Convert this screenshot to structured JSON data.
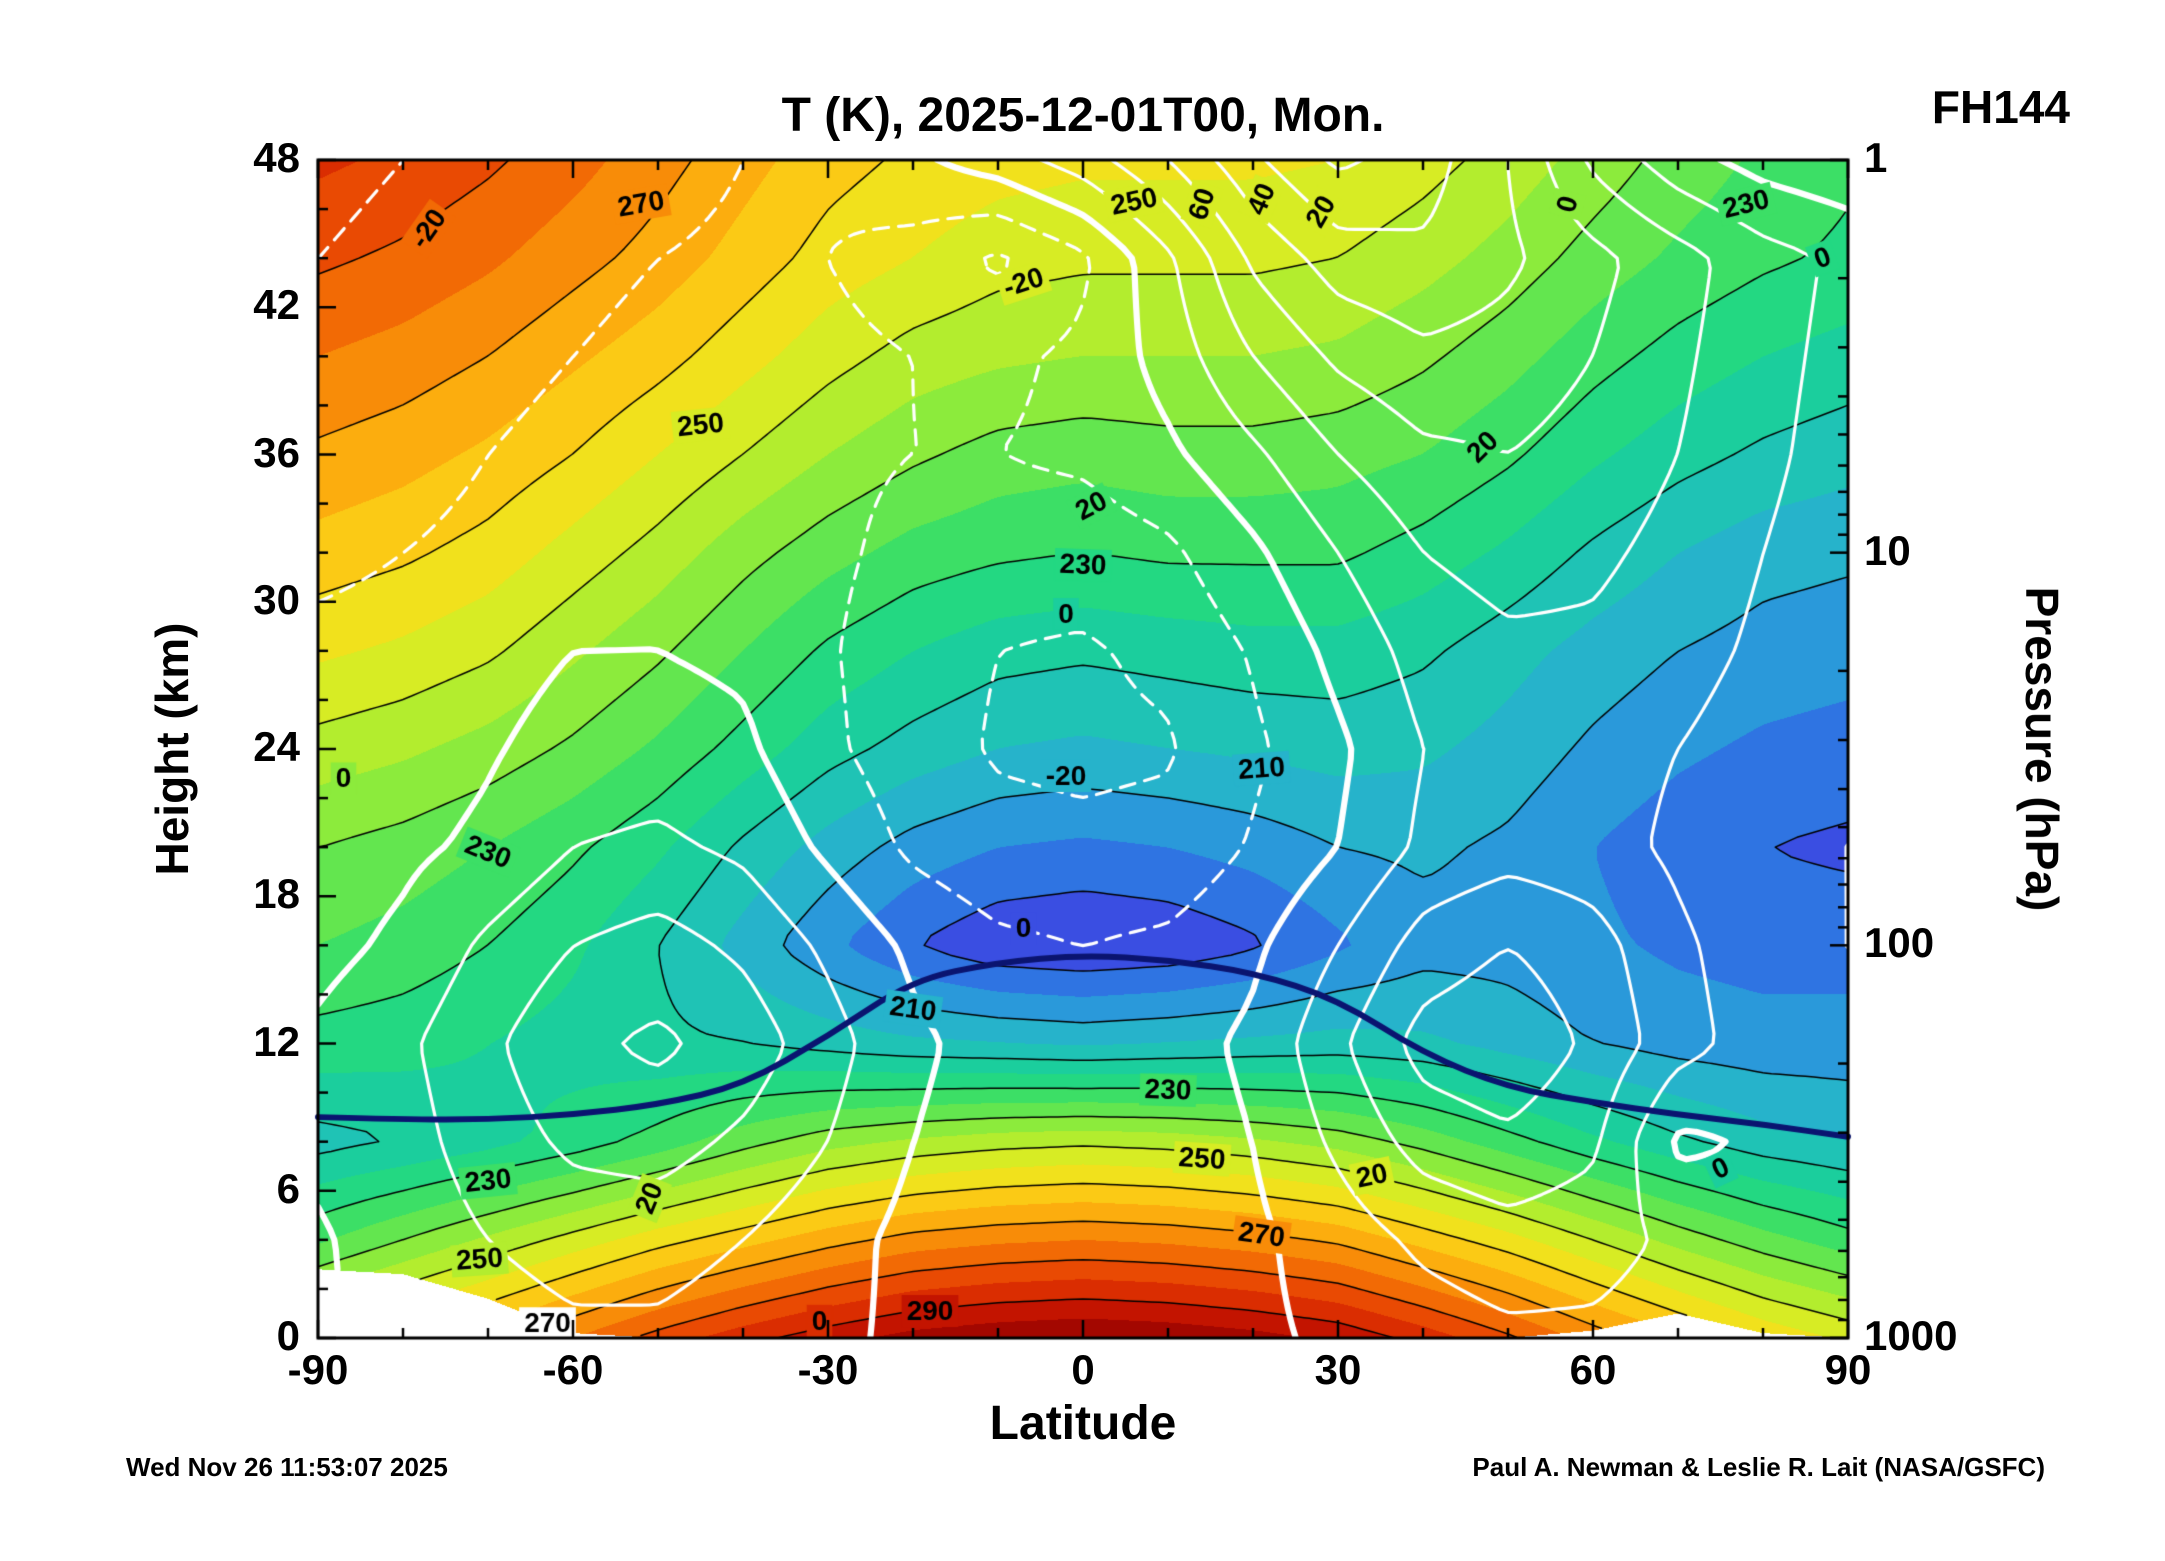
{
  "title": "T (K), 2025-12-01T00, Mon.",
  "annotation_top_right": "FH144",
  "footer_left": "Wed Nov 26 11:53:07 2025",
  "footer_right": "Paul A. Newman & Leslie R. Lait (NASA/GSFC)",
  "axes": {
    "x_label": "Latitude",
    "y_left_label": "Height (km)",
    "y_right_label": "Pressure (hPa)",
    "x_ticks": [
      -90,
      -60,
      -30,
      0,
      30,
      60,
      90
    ],
    "x_minor_step": 10,
    "y_left_ticks": [
      0,
      6,
      12,
      18,
      24,
      30,
      36,
      42,
      48
    ],
    "y_left_minor_step": 2,
    "y_right_ticks": [
      1,
      10,
      100,
      1000
    ],
    "x_range": [
      -90,
      90
    ],
    "y_range_km": [
      0,
      48
    ]
  },
  "chart_data": {
    "type": "heatmap",
    "x_lat": [
      -90,
      -80,
      -70,
      -60,
      -50,
      -40,
      -30,
      -20,
      -10,
      0,
      10,
      20,
      30,
      40,
      50,
      60,
      70,
      80,
      90
    ],
    "y_km": [
      0,
      4,
      8,
      12,
      16,
      20,
      24,
      28,
      32,
      36,
      40,
      44,
      48
    ],
    "temperature_K": [
      [
        256,
        262,
        268,
        275,
        282,
        288,
        293,
        297,
        299,
        300,
        299,
        297,
        294,
        288,
        281,
        273,
        266,
        259,
        254
      ],
      [
        234,
        240,
        246,
        252,
        258,
        263,
        268,
        272,
        274,
        275,
        274,
        272,
        269,
        263,
        257,
        250,
        243,
        237,
        232
      ],
      [
        218,
        220,
        223,
        227,
        232,
        238,
        243,
        246,
        248,
        249,
        248,
        246,
        243,
        238,
        232,
        226,
        221,
        217,
        215
      ],
      [
        228,
        227,
        225,
        223,
        221,
        220,
        218,
        216,
        215,
        214,
        215,
        216,
        217,
        216,
        213,
        210,
        208,
        207,
        207
      ],
      [
        235,
        233,
        230,
        226,
        220,
        213,
        206,
        200,
        196,
        195,
        196,
        199,
        204,
        208,
        208,
        206,
        204,
        203,
        203
      ],
      [
        240,
        238,
        235,
        231,
        226,
        219,
        213,
        208,
        205,
        204,
        205,
        207,
        210,
        211,
        209,
        205,
        202,
        200,
        199
      ],
      [
        248,
        246,
        243,
        239,
        234,
        228,
        222,
        218,
        215,
        214,
        215,
        216,
        217,
        216,
        213,
        209,
        206,
        204,
        203
      ],
      [
        256,
        254,
        251,
        246,
        241,
        235,
        229,
        225,
        222,
        221,
        222,
        223,
        223,
        221,
        217,
        213,
        210,
        208,
        207
      ],
      [
        263,
        261,
        258,
        253,
        248,
        242,
        237,
        233,
        231,
        230,
        231,
        231,
        231,
        228,
        224,
        219,
        215,
        212,
        211
      ],
      [
        269,
        267,
        264,
        260,
        255,
        250,
        245,
        241,
        238,
        237,
        238,
        238,
        237,
        235,
        231,
        226,
        222,
        219,
        217
      ],
      [
        275,
        273,
        270,
        266,
        262,
        257,
        252,
        248,
        246,
        245,
        245,
        245,
        244,
        241,
        237,
        232,
        228,
        225,
        223
      ],
      [
        281,
        279,
        276,
        272,
        268,
        263,
        258,
        255,
        252,
        251,
        251,
        251,
        250,
        247,
        243,
        238,
        234,
        231,
        229
      ],
      [
        286,
        284,
        281,
        277,
        272,
        267,
        262,
        259,
        257,
        256,
        256,
        256,
        255,
        252,
        248,
        243,
        238,
        234,
        231
      ]
    ],
    "zonal_wind_ms": [
      [
        -1,
        2,
        5,
        8,
        8,
        5,
        2,
        -2,
        -4,
        -5,
        -4,
        -2,
        2,
        5,
        8,
        8,
        5,
        2,
        0
      ],
      [
        -1,
        4,
        10,
        14,
        14,
        10,
        4,
        -3,
        -6,
        -6,
        -5,
        -2,
        5,
        12,
        16,
        14,
        8,
        4,
        2
      ],
      [
        2,
        6,
        15,
        22,
        24,
        18,
        10,
        0,
        -5,
        -6,
        -5,
        0,
        12,
        24,
        28,
        22,
        -2,
        1,
        2
      ],
      [
        2,
        8,
        18,
        28,
        32,
        26,
        14,
        2,
        -4,
        -6,
        -4,
        2,
        18,
        34,
        38,
        28,
        14,
        5,
        2
      ],
      [
        -3,
        2,
        12,
        20,
        24,
        18,
        8,
        -2,
        -8,
        -10,
        -8,
        -2,
        10,
        24,
        30,
        24,
        12,
        4,
        0
      ],
      [
        -5,
        -2,
        2,
        10,
        12,
        8,
        -2,
        -12,
        -17,
        -18,
        -17,
        -9,
        0,
        12,
        16,
        14,
        8,
        2,
        0
      ],
      [
        -6,
        -5,
        -1,
        4,
        5,
        2,
        -8,
        -16,
        -21,
        -22,
        -21,
        -12,
        -2,
        10,
        14,
        14,
        10,
        5,
        2
      ],
      [
        -8,
        -7,
        -4,
        0,
        0,
        -2,
        -9,
        -16,
        -20,
        -21,
        -18,
        -9,
        3,
        14,
        18,
        18,
        14,
        8,
        4
      ],
      [
        -12,
        -10,
        -8,
        -4,
        -2,
        -4,
        -8,
        -13,
        -16,
        -16,
        -12,
        -2,
        10,
        20,
        24,
        22,
        17,
        10,
        5
      ],
      [
        -15,
        -13,
        -10,
        -7,
        -5,
        -5,
        -8,
        -10,
        -10,
        -8,
        -2,
        8,
        20,
        28,
        30,
        26,
        20,
        12,
        6
      ],
      [
        -18,
        -16,
        -13,
        -10,
        -8,
        -7,
        -8,
        -10,
        -12,
        -8,
        4,
        20,
        32,
        38,
        36,
        30,
        22,
        13,
        7
      ],
      [
        -20,
        -18,
        -15,
        -12,
        -10,
        -9,
        -10,
        -14,
        -22,
        -12,
        8,
        32,
        45,
        48,
        42,
        33,
        24,
        14,
        8
      ],
      [
        -22,
        -20,
        -17,
        -14,
        -12,
        -10,
        -8,
        -2,
        5,
        15,
        30,
        48,
        62,
        55,
        40,
        18,
        4,
        -4,
        -8
      ]
    ],
    "tropopause_km": [
      9.0,
      8.9,
      8.9,
      9.1,
      9.5,
      10.3,
      12.3,
      14.6,
      15.3,
      15.6,
      15.4,
      14.9,
      13.8,
      11.6,
      10.2,
      9.6,
      9.1,
      8.7,
      8.2
    ],
    "terrain_km": [
      2.8,
      2.6,
      1.6,
      0.2,
      0,
      0,
      0,
      0,
      0,
      0,
      0,
      0,
      0,
      0,
      0,
      0.3,
      1.0,
      0.2,
      0
    ],
    "fill_levels_K": {
      "start": 190,
      "step": 5
    },
    "colormap": [
      "#3c2ed4",
      "#3a4ee2",
      "#2f74e2",
      "#2a99da",
      "#26b3cb",
      "#1fc3b5",
      "#1bce9d",
      "#23d882",
      "#3cdf66",
      "#63e64f",
      "#8ceb3c",
      "#b3ed2e",
      "#d7ec24",
      "#f1e11c",
      "#fbca15",
      "#fcad0e",
      "#f88c08",
      "#f26a05",
      "#e94a03",
      "#da2d01",
      "#c31400",
      "#a30700",
      "#810000"
    ],
    "temp_contour_levels": [
      200,
      210,
      220,
      230,
      240,
      250,
      260,
      270,
      280,
      290
    ],
    "wind_contour_levels": [
      -30,
      -20,
      -10,
      10,
      20,
      30,
      40,
      50,
      60
    ],
    "wind_zero_level": 0,
    "contour_line_colors": {
      "temperature": "#000000",
      "wind": "#ffffff",
      "tropopause": "#0a1470"
    },
    "labels": [
      {
        "text": "270",
        "lat": -52,
        "km": 46.2,
        "rot": -10,
        "field": "temp"
      },
      {
        "text": "250",
        "lat": 6,
        "km": 46.3,
        "rot": -12,
        "field": "temp"
      },
      {
        "text": "230",
        "lat": 78,
        "km": 46.2,
        "rot": -14,
        "field": "temp"
      },
      {
        "text": "250",
        "lat": -45,
        "km": 37.2,
        "rot": -6,
        "field": "temp"
      },
      {
        "text": "230",
        "lat": -70,
        "km": 19.8,
        "rot": 22,
        "field": "temp"
      },
      {
        "text": "230",
        "lat": 0,
        "km": 31.5,
        "rot": 2,
        "field": "temp"
      },
      {
        "text": "210",
        "lat": 21,
        "km": 23.2,
        "rot": -4,
        "field": "temp"
      },
      {
        "text": "210",
        "lat": -20,
        "km": 13.4,
        "rot": 8,
        "field": "temp"
      },
      {
        "text": "230",
        "lat": 10,
        "km": 10.1,
        "rot": 2,
        "field": "temp"
      },
      {
        "text": "250",
        "lat": 14,
        "km": 7.3,
        "rot": 4,
        "field": "temp"
      },
      {
        "text": "270",
        "lat": 21,
        "km": 4.2,
        "rot": 8,
        "field": "temp"
      },
      {
        "text": "290",
        "lat": -18,
        "km": 1.1,
        "rot": 0,
        "field": "temp"
      },
      {
        "text": "230",
        "lat": -70,
        "km": 6.4,
        "rot": -6,
        "field": "temp"
      },
      {
        "text": "250",
        "lat": -71,
        "km": 3.2,
        "rot": -4,
        "field": "temp"
      },
      {
        "text": "270",
        "lat": -63,
        "km": 0.6,
        "rot": 0,
        "field": "temp"
      },
      {
        "text": "-20",
        "lat": -77,
        "km": 45.2,
        "rot": -55,
        "field": "wind"
      },
      {
        "text": "-20",
        "lat": -7,
        "km": 43.0,
        "rot": -18,
        "field": "wind"
      },
      {
        "text": "60",
        "lat": 14,
        "km": 46.2,
        "rot": -72,
        "field": "wind"
      },
      {
        "text": "40",
        "lat": 21,
        "km": 46.4,
        "rot": -66,
        "field": "wind"
      },
      {
        "text": "20",
        "lat": 28,
        "km": 45.9,
        "rot": -60,
        "field": "wind"
      },
      {
        "text": "0",
        "lat": 57,
        "km": 46.2,
        "rot": -75,
        "field": "wind"
      },
      {
        "text": "0",
        "lat": 87,
        "km": 44.0,
        "rot": -20,
        "field": "wind"
      },
      {
        "text": "20",
        "lat": 47,
        "km": 36.3,
        "rot": -45,
        "field": "wind"
      },
      {
        "text": "20",
        "lat": 1,
        "km": 33.9,
        "rot": -28,
        "field": "wind"
      },
      {
        "text": "0",
        "lat": -2,
        "km": 29.5,
        "rot": 0,
        "field": "wind"
      },
      {
        "text": "-20",
        "lat": -2,
        "km": 22.9,
        "rot": 0,
        "field": "wind"
      },
      {
        "text": "0",
        "lat": -7,
        "km": 16.7,
        "rot": 0,
        "field": "wind"
      },
      {
        "text": "0",
        "lat": -87,
        "km": 22.8,
        "rot": 0,
        "field": "wind"
      },
      {
        "text": "20",
        "lat": -51,
        "km": 5.7,
        "rot": -68,
        "field": "wind"
      },
      {
        "text": "20",
        "lat": 34,
        "km": 6.6,
        "rot": -12,
        "field": "wind"
      },
      {
        "text": "0",
        "lat": -31,
        "km": 0.7,
        "rot": 0,
        "field": "wind"
      },
      {
        "text": "0",
        "lat": 75,
        "km": 6.9,
        "rot": -25,
        "field": "wind"
      }
    ]
  }
}
